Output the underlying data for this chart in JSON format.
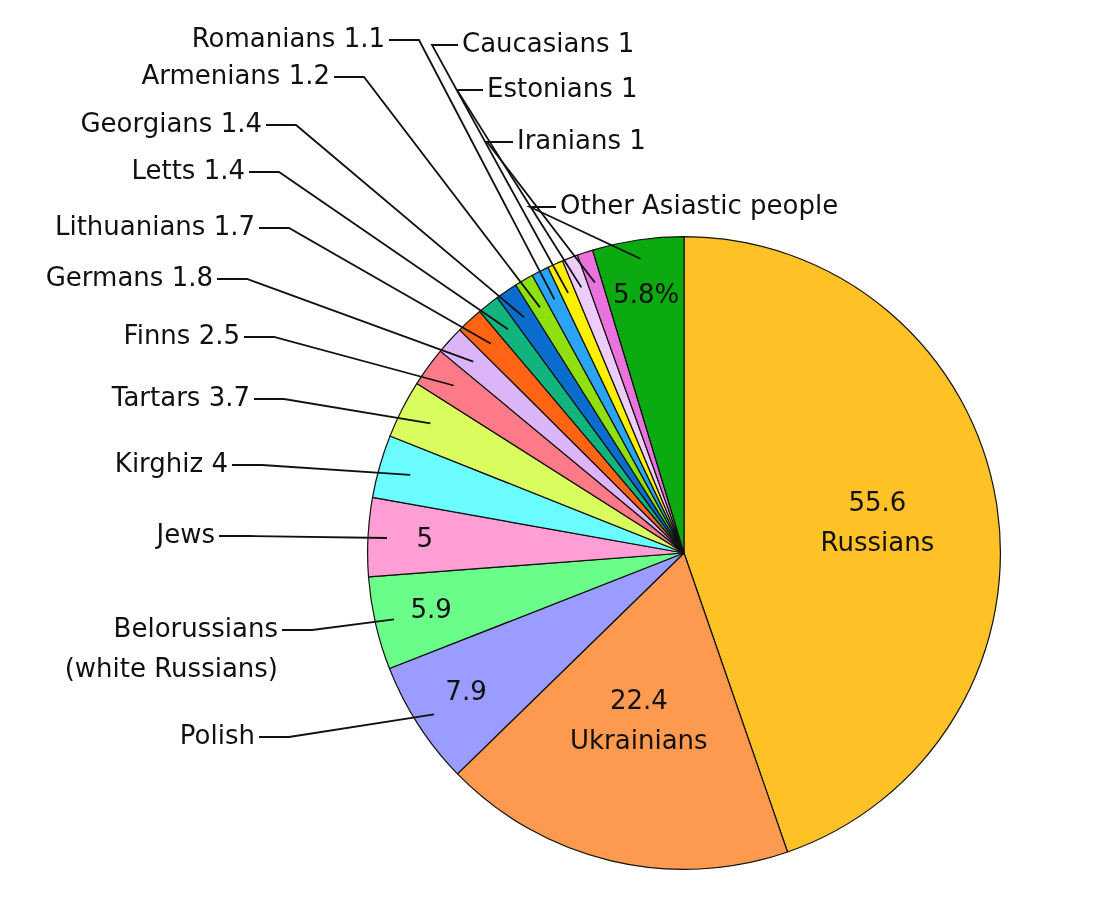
{
  "chart_data": {
    "type": "pie",
    "categories": [
      "Russians",
      "Ukrainians",
      "Polish",
      "Belorussians\n(white Russians)",
      "Jews",
      "Kirghiz",
      "Tartars",
      "Finns",
      "Germans",
      "Lithuanians",
      "Letts",
      "Georgians",
      "Armenians",
      "Romanians",
      "Caucasians",
      "Estonians",
      "Iranians",
      "Other Asiastic people"
    ],
    "values": [
      55.6,
      22.4,
      7.9,
      5.9,
      5,
      4,
      3.7,
      2.5,
      1.8,
      1.7,
      1.4,
      1.4,
      1.2,
      1.1,
      1,
      1,
      1,
      5.8
    ],
    "value_labels": [
      "55.6",
      "22.4",
      "7.9",
      "5.9",
      "5",
      "4",
      "3.7",
      "2.5",
      "1.8",
      "1.7",
      "1.4",
      "1.4",
      "1.2",
      "1.1",
      "1",
      "1",
      "1",
      "5.8%"
    ],
    "colors": [
      "#fec126",
      "#fe9a50",
      "#9a9cff",
      "#6bfd8a",
      "#ff9ed4",
      "#6afcff",
      "#d9fd5f",
      "#ff7a88",
      "#dcb4f8",
      "#ff6414",
      "#12b47e",
      "#0a6ccc",
      "#8ee00e",
      "#2aa5f5",
      "#fff000",
      "#ecccf8",
      "#ea72dc",
      "#0aaa10"
    ],
    "legend": false
  }
}
